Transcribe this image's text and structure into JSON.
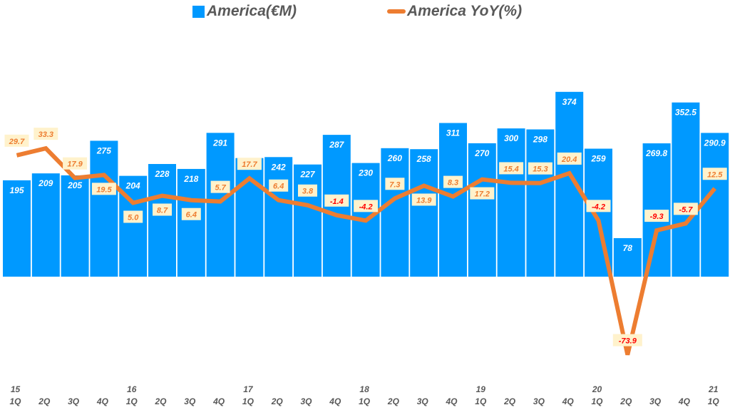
{
  "chart_data": {
    "type": "bar+line",
    "title": "",
    "legend_position": "top",
    "grid": false,
    "categories": [
      "1Q",
      "2Q",
      "3Q",
      "4Q",
      "1Q",
      "2Q",
      "3Q",
      "4Q",
      "1Q",
      "2Q",
      "3Q",
      "4Q",
      "1Q",
      "2Q",
      "3Q",
      "4Q",
      "1Q",
      "2Q",
      "3Q",
      "4Q",
      "1Q",
      "2Q",
      "3Q",
      "4Q",
      "1Q"
    ],
    "year_labels": [
      "15",
      "",
      "",
      "",
      "16",
      "",
      "",
      "",
      "17",
      "",
      "",
      "",
      "18",
      "",
      "",
      "",
      "19",
      "",
      "",
      "",
      "20",
      "",
      "",
      "",
      "21"
    ],
    "series": [
      {
        "name": "America(€M)",
        "type": "bar",
        "color": "#0099FF",
        "values": [
          195,
          209,
          205,
          275,
          204,
          228,
          218,
          291,
          240,
          242,
          227,
          287,
          230,
          260,
          258,
          311,
          270,
          300,
          298,
          374,
          259,
          78,
          269.8,
          352.5,
          290.9
        ],
        "labels": [
          "195",
          "209",
          "205",
          "275",
          "204",
          "228",
          "218",
          "291",
          "",
          "242",
          "227",
          "287",
          "230",
          "260",
          "258",
          "311",
          "270",
          "300",
          "298",
          "374",
          "259",
          "78",
          "269.8",
          "352.5",
          "290.9"
        ]
      },
      {
        "name": "America YoY(%)",
        "type": "line",
        "color": "#ED7D31",
        "values": [
          29.7,
          33.3,
          17.9,
          19.5,
          5.0,
          8.7,
          6.4,
          5.7,
          17.7,
          6.4,
          3.8,
          -1.4,
          -4.2,
          7.3,
          13.9,
          8.3,
          17.2,
          15.4,
          15.3,
          20.4,
          -4.2,
          -73.9,
          -9.3,
          -5.7,
          12.5
        ],
        "labels": [
          "29.7",
          "33.3",
          "17.9",
          "19.5",
          "5.0",
          "8.7",
          "6.4",
          "5.7",
          "17.7",
          "6.4",
          "3.8",
          "-1.4",
          "-4.2",
          "7.3",
          "13.9",
          "8.3",
          "17.2",
          "15.4",
          "15.3",
          "20.4",
          "-4.2",
          "-73.9",
          "-9.3",
          "-5.7",
          "12.5"
        ]
      }
    ],
    "label_colors": {
      "positive": "#ED7D31",
      "negative": "#FF0000",
      "label_box": "#FFF2CC"
    }
  }
}
